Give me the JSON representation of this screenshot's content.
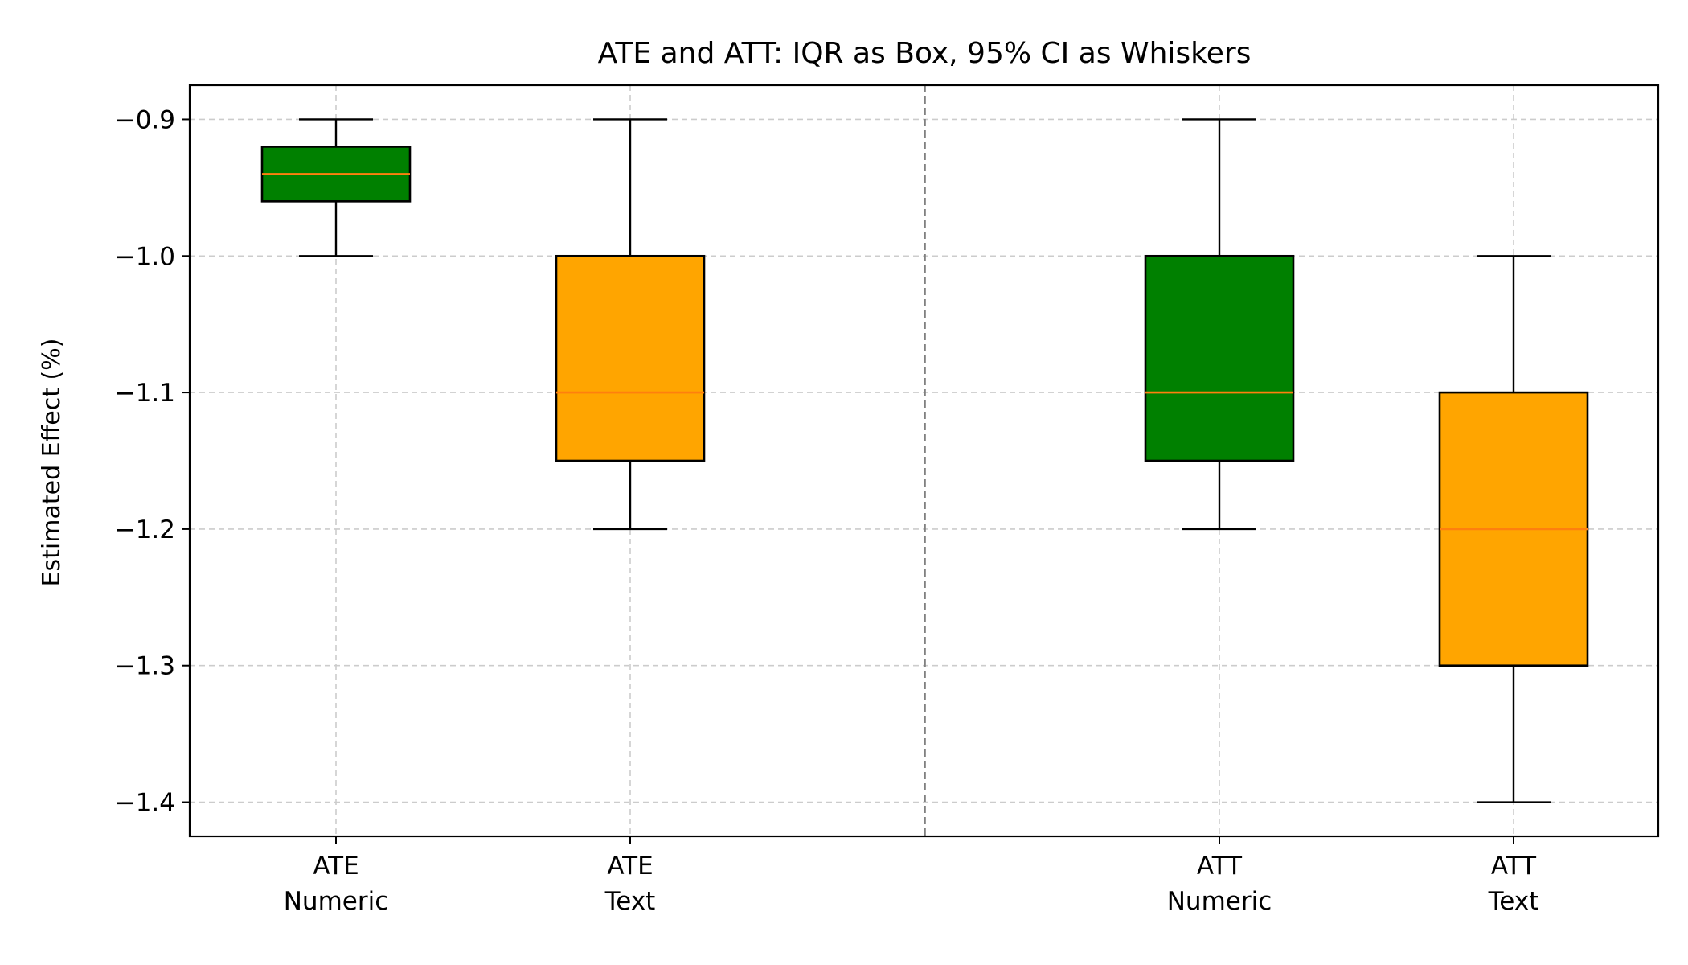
{
  "chart_data": {
    "type": "box",
    "title": "ATE and ATT: IQR as Box, 95% CI as Whiskers",
    "xlabel": "",
    "ylabel": "Estimated Effect (%)",
    "ylim": [
      -1.425,
      -0.875
    ],
    "yticks": [
      -0.9,
      -1.0,
      -1.1,
      -1.2,
      -1.3,
      -1.4
    ],
    "ytick_labels": [
      "−0.9",
      "−1.0",
      "−1.1",
      "−1.2",
      "−1.3",
      "−1.4"
    ],
    "grid": true,
    "separator_between_groups": true,
    "categories": [
      {
        "line1": "ATE",
        "line2": "Numeric"
      },
      {
        "line1": "ATE",
        "line2": "Text"
      },
      {
        "line1": "ATT",
        "line2": "Numeric"
      },
      {
        "line1": "ATT",
        "line2": "Text"
      }
    ],
    "boxes": [
      {
        "name": "ATE Numeric",
        "whisker_low": -1.0,
        "q1": -0.96,
        "median": -0.94,
        "q3": -0.92,
        "whisker_high": -0.9,
        "color": "#008000"
      },
      {
        "name": "ATE Text",
        "whisker_low": -1.2,
        "q1": -1.15,
        "median": -1.1,
        "q3": -1.0,
        "whisker_high": -0.9,
        "color": "#ffa500"
      },
      {
        "name": "ATT Numeric",
        "whisker_low": -1.2,
        "q1": -1.15,
        "median": -1.1,
        "q3": -1.0,
        "whisker_high": -0.9,
        "color": "#008000"
      },
      {
        "name": "ATT Text",
        "whisker_low": -1.4,
        "q1": -1.3,
        "median": -1.2,
        "q3": -1.1,
        "whisker_high": -1.0,
        "color": "#ffa500"
      }
    ],
    "median_color": "#ff7f0e"
  }
}
